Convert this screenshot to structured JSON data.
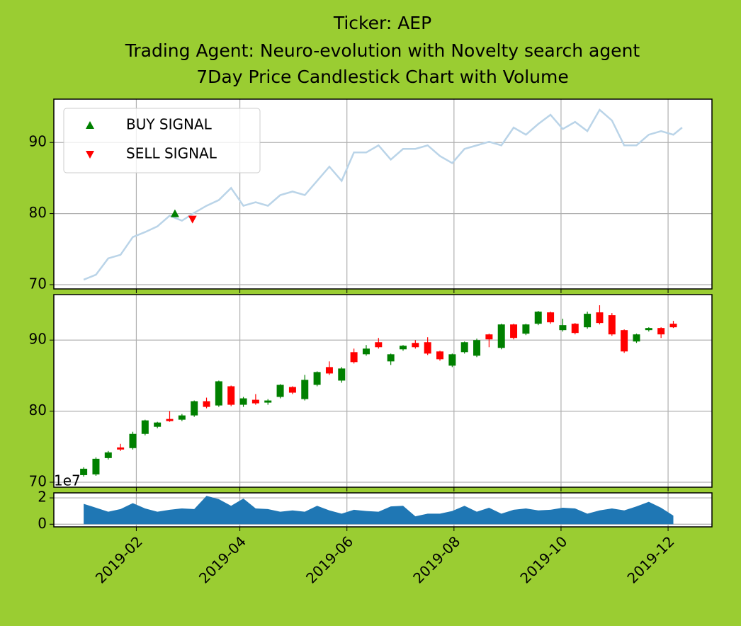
{
  "chart_data": [
    {
      "type": "line",
      "title": [
        "Ticker: AEP",
        "Trading Agent: Neuro-evolution with Novelty search agent",
        "7Day Price Candlestick Chart with Volume"
      ],
      "xlim": [
        "2018-12-16",
        "2019-12-26"
      ],
      "ylim": [
        69.4,
        96.1
      ],
      "yticks": [
        70,
        80,
        90
      ],
      "grid": true,
      "legend": "upper left",
      "series": [
        {
          "color": "#bad4e8",
          "x": [
            "2019-01-02",
            "2019-01-09",
            "2019-01-16",
            "2019-01-23",
            "2019-01-30",
            "2019-02-06",
            "2019-02-13",
            "2019-02-20",
            "2019-02-27",
            "2019-03-06",
            "2019-03-13",
            "2019-03-20",
            "2019-03-27",
            "2019-04-03",
            "2019-04-10",
            "2019-04-17",
            "2019-04-24",
            "2019-05-01",
            "2019-05-08",
            "2019-05-15",
            "2019-05-22",
            "2019-05-29",
            "2019-06-05",
            "2019-06-12",
            "2019-06-19",
            "2019-06-26",
            "2019-07-03",
            "2019-07-10",
            "2019-07-17",
            "2019-07-24",
            "2019-07-31",
            "2019-08-07",
            "2019-08-14",
            "2019-08-21",
            "2019-08-28",
            "2019-09-04",
            "2019-09-11",
            "2019-09-18",
            "2019-09-25",
            "2019-10-02",
            "2019-10-09",
            "2019-10-16",
            "2019-10-23",
            "2019-10-30",
            "2019-11-06",
            "2019-11-13",
            "2019-11-20",
            "2019-11-27",
            "2019-12-04",
            "2019-12-09"
          ],
          "values": [
            70.7,
            71.4,
            73.7,
            74.2,
            76.7,
            77.4,
            78.2,
            79.7,
            79.0,
            80.1,
            81.1,
            81.9,
            83.6,
            81.1,
            81.6,
            81.1,
            82.6,
            83.1,
            82.6,
            84.6,
            86.6,
            84.6,
            88.6,
            88.6,
            89.6,
            87.6,
            89.1,
            89.1,
            89.6,
            88.1,
            87.1,
            89.1,
            89.6,
            90.1,
            89.6,
            92.1,
            91.1,
            92.6,
            93.9,
            91.9,
            92.9,
            91.6,
            94.6,
            93.1,
            89.6,
            89.6,
            91.1,
            91.6,
            91.1,
            92.1
          ]
        },
        {
          "name": "BUY SIGNAL",
          "color": "#008000",
          "marker": "^",
          "x": [
            "2019-02-23"
          ],
          "values": [
            80.0
          ]
        },
        {
          "name": "SELL SIGNAL",
          "color": "#ff0000",
          "marker": "v",
          "x": [
            "2019-03-05"
          ],
          "values": [
            79.2
          ]
        }
      ]
    },
    {
      "type": "candlestick",
      "xlim": [
        "2018-12-16",
        "2019-12-26"
      ],
      "ylim": [
        69.3,
        96.4
      ],
      "yticks": [
        70,
        80,
        90
      ],
      "grid": true,
      "up_color": "#008000",
      "down_color": "#ff0000",
      "x": [
        "2019-01-02",
        "2019-01-09",
        "2019-01-16",
        "2019-01-23",
        "2019-01-30",
        "2019-02-06",
        "2019-02-13",
        "2019-02-20",
        "2019-02-27",
        "2019-03-06",
        "2019-03-13",
        "2019-03-20",
        "2019-03-27",
        "2019-04-03",
        "2019-04-10",
        "2019-04-17",
        "2019-04-24",
        "2019-05-01",
        "2019-05-08",
        "2019-05-15",
        "2019-05-22",
        "2019-05-29",
        "2019-06-05",
        "2019-06-12",
        "2019-06-19",
        "2019-06-26",
        "2019-07-03",
        "2019-07-10",
        "2019-07-17",
        "2019-07-24",
        "2019-07-31",
        "2019-08-07",
        "2019-08-14",
        "2019-08-21",
        "2019-08-28",
        "2019-09-04",
        "2019-09-11",
        "2019-09-18",
        "2019-09-25",
        "2019-10-02",
        "2019-10-09",
        "2019-10-16",
        "2019-10-23",
        "2019-10-30",
        "2019-11-06",
        "2019-11-13",
        "2019-11-20",
        "2019-11-27",
        "2019-12-04"
      ],
      "open": [
        71.0,
        71.1,
        73.4,
        74.9,
        74.8,
        76.8,
        77.8,
        78.9,
        78.8,
        79.4,
        81.4,
        80.8,
        83.5,
        80.9,
        81.6,
        81.2,
        82.0,
        83.4,
        81.7,
        83.7,
        86.2,
        84.3,
        88.3,
        88.0,
        89.7,
        87.0,
        88.7,
        89.6,
        89.7,
        88.4,
        86.4,
        88.3,
        87.8,
        90.8,
        88.9,
        92.2,
        90.9,
        92.3,
        93.9,
        91.4,
        92.3,
        91.8,
        93.9,
        93.5,
        91.4,
        89.8,
        91.4,
        91.7,
        92.3
      ],
      "high": [
        72.1,
        73.5,
        74.4,
        75.4,
        77.1,
        78.8,
        78.5,
        80.0,
        79.6,
        81.5,
        81.9,
        84.3,
        83.6,
        82.0,
        82.4,
        81.7,
        83.8,
        83.5,
        85.1,
        85.6,
        87.0,
        86.2,
        88.8,
        89.3,
        90.3,
        88.1,
        89.3,
        90.0,
        90.4,
        88.5,
        88.1,
        89.8,
        90.2,
        90.9,
        92.3,
        92.3,
        92.3,
        94.1,
        94.0,
        93.0,
        92.4,
        94.0,
        94.9,
        93.8,
        91.5,
        90.9,
        91.8,
        91.8,
        92.7
      ],
      "low": [
        70.8,
        70.9,
        73.2,
        74.4,
        74.6,
        76.6,
        77.6,
        78.5,
        78.6,
        79.2,
        80.4,
        80.6,
        80.7,
        80.6,
        80.9,
        80.9,
        81.8,
        82.4,
        81.5,
        83.5,
        85.1,
        84.0,
        86.7,
        87.8,
        88.8,
        86.5,
        88.5,
        88.8,
        87.9,
        87.1,
        86.2,
        88.1,
        87.6,
        89.0,
        88.7,
        90.1,
        90.7,
        92.1,
        92.3,
        91.2,
        90.8,
        91.6,
        92.2,
        90.6,
        88.2,
        89.6,
        91.2,
        90.3,
        91.7
      ],
      "close": [
        71.9,
        73.3,
        74.2,
        74.6,
        76.8,
        78.7,
        78.4,
        78.6,
        79.4,
        81.4,
        80.6,
        84.2,
        80.9,
        81.8,
        81.1,
        81.5,
        83.7,
        82.6,
        84.4,
        85.5,
        85.3,
        86.0,
        86.9,
        88.8,
        89.0,
        88.0,
        89.2,
        89.0,
        88.1,
        87.3,
        88.0,
        89.7,
        90.0,
        90.1,
        92.2,
        90.3,
        92.2,
        94.0,
        92.5,
        92.1,
        91.0,
        93.7,
        92.4,
        90.8,
        88.4,
        90.8,
        91.7,
        90.8,
        91.8
      ]
    },
    {
      "type": "area",
      "xlim": [
        "2018-12-16",
        "2019-12-26"
      ],
      "ylim": [
        -0.2,
        2.38
      ],
      "yticks": [
        0,
        2
      ],
      "offset_label": "1e7",
      "grid": true,
      "color": "#1f77b4",
      "xticks": [
        {
          "value": "2019-02-01",
          "label": "2019-02"
        },
        {
          "value": "2019-04-01",
          "label": "2019-04"
        },
        {
          "value": "2019-06-01",
          "label": "2019-06"
        },
        {
          "value": "2019-08-01",
          "label": "2019-08"
        },
        {
          "value": "2019-10-01",
          "label": "2019-10"
        },
        {
          "value": "2019-12-01",
          "label": "2019-12"
        }
      ],
      "x": [
        "2019-01-02",
        "2019-01-09",
        "2019-01-16",
        "2019-01-23",
        "2019-01-30",
        "2019-02-06",
        "2019-02-13",
        "2019-02-20",
        "2019-02-27",
        "2019-03-06",
        "2019-03-13",
        "2019-03-20",
        "2019-03-27",
        "2019-04-03",
        "2019-04-10",
        "2019-04-17",
        "2019-04-24",
        "2019-05-01",
        "2019-05-08",
        "2019-05-15",
        "2019-05-22",
        "2019-05-29",
        "2019-06-05",
        "2019-06-12",
        "2019-06-19",
        "2019-06-26",
        "2019-07-03",
        "2019-07-10",
        "2019-07-17",
        "2019-07-24",
        "2019-07-31",
        "2019-08-07",
        "2019-08-14",
        "2019-08-21",
        "2019-08-28",
        "2019-09-04",
        "2019-09-11",
        "2019-09-18",
        "2019-09-25",
        "2019-10-02",
        "2019-10-09",
        "2019-10-16",
        "2019-10-23",
        "2019-10-30",
        "2019-11-06",
        "2019-11-13",
        "2019-11-20",
        "2019-11-27",
        "2019-12-04"
      ],
      "values": [
        1.55,
        1.25,
        0.95,
        1.15,
        1.6,
        1.2,
        0.95,
        1.1,
        1.2,
        1.15,
        2.15,
        1.9,
        1.4,
        1.95,
        1.2,
        1.15,
        0.95,
        1.05,
        0.95,
        1.4,
        1.05,
        0.8,
        1.1,
        1.0,
        0.95,
        1.35,
        1.4,
        0.6,
        0.8,
        0.8,
        1.0,
        1.4,
        0.95,
        1.25,
        0.8,
        1.1,
        1.2,
        1.05,
        1.1,
        1.25,
        1.2,
        0.8,
        1.05,
        1.2,
        1.05,
        1.35,
        1.7,
        1.25,
        0.65
      ]
    }
  ]
}
